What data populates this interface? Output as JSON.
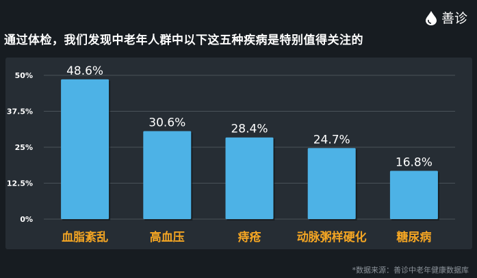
{
  "header": {
    "title": "通过体检，我们发现中老年人群中以下这五种疾病是特别值得关注的",
    "logo_text": "善诊",
    "logo_icon": "drop-icon"
  },
  "footer": {
    "source": "*数据来源：善诊中老年健康数据库"
  },
  "colors": {
    "bar": "#4db2e6",
    "category_label": "#f5a623",
    "grid": "#4a5259",
    "background": "#171c21",
    "panel": "#262d34"
  },
  "chart_data": {
    "type": "bar",
    "title": "",
    "xlabel": "",
    "ylabel": "",
    "categories": [
      "血脂紊乱",
      "高血压",
      "痔疮",
      "动脉粥样硬化",
      "糖尿病"
    ],
    "values": [
      48.6,
      30.6,
      28.4,
      24.7,
      16.8
    ],
    "value_labels": [
      "48.6%",
      "30.6%",
      "28.4%",
      "24.7%",
      "16.8%"
    ],
    "yticks": [
      0,
      12.5,
      25,
      37.5,
      50
    ],
    "ytick_labels": [
      "0%",
      "12.5%",
      "25%",
      "37.5%",
      "50%"
    ],
    "ylim": [
      0,
      50
    ],
    "grid": true,
    "legend": "none"
  }
}
